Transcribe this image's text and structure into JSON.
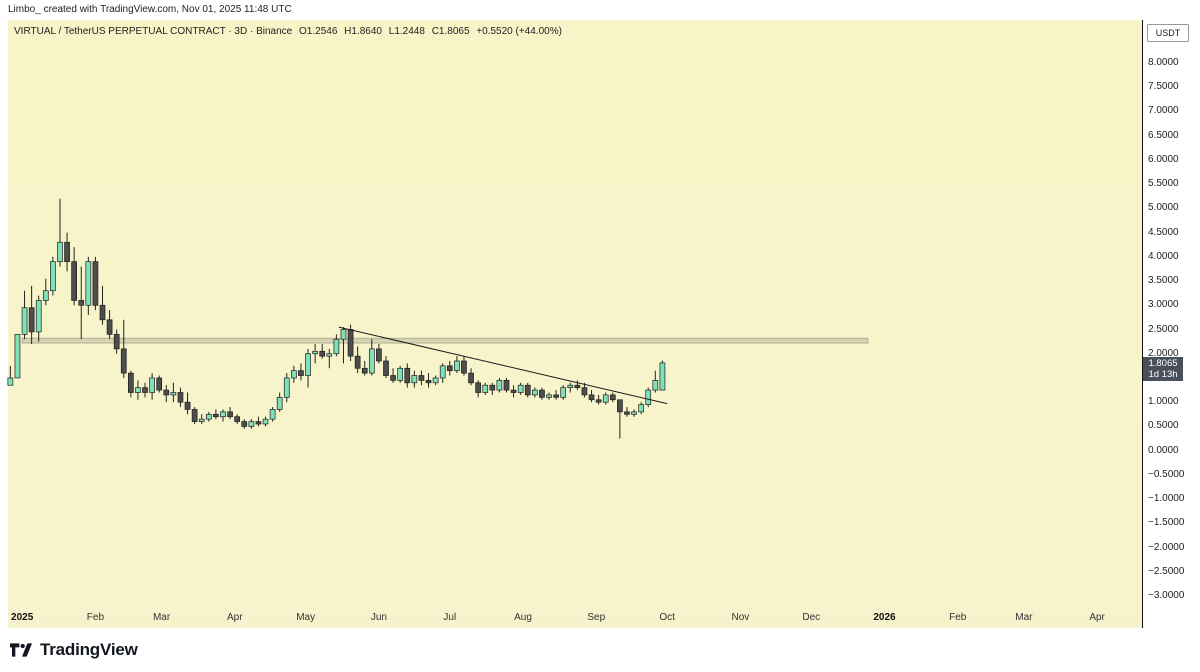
{
  "header": {
    "credit": "Limbo_ created with TradingView.com, Nov 01, 2025 11:48 UTC"
  },
  "legend": {
    "symbol": "VIRTUAL / TetherUS PERPETUAL CONTRACT · 3D · Binance",
    "open": "O1.2546",
    "high": "H1.8640",
    "low": "L1.2448",
    "close": "C1.8065",
    "change": "+0.5520 (+44.00%)"
  },
  "price_axis": {
    "currency": "USDT",
    "ticks": [
      "8.0000",
      "7.5000",
      "7.0000",
      "6.5000",
      "6.0000",
      "5.5000",
      "5.0000",
      "4.5000",
      "4.0000",
      "3.5000",
      "3.0000",
      "2.5000",
      "2.0000",
      "1.5000",
      "1.0000",
      "0.5000",
      "0.0000",
      "−0.5000",
      "−1.0000",
      "−1.5000",
      "−2.0000",
      "−2.5000",
      "−3.0000"
    ],
    "last_price": "1.8065",
    "countdown": "1d 13h"
  },
  "time_axis": {
    "labels": [
      {
        "text": "2025",
        "bold": true
      },
      {
        "text": "Feb"
      },
      {
        "text": "Mar"
      },
      {
        "text": "Apr"
      },
      {
        "text": "May"
      },
      {
        "text": "Jun"
      },
      {
        "text": "Jul"
      },
      {
        "text": "Aug"
      },
      {
        "text": "Sep"
      },
      {
        "text": "Oct"
      },
      {
        "text": "Nov"
      },
      {
        "text": "Dec"
      },
      {
        "text": "2026",
        "bold": true
      },
      {
        "text": "Feb"
      },
      {
        "text": "Mar"
      },
      {
        "text": "Apr"
      }
    ]
  },
  "brand": {
    "name": "TradingView"
  },
  "colors": {
    "up": "#80e0b8",
    "down": "#4d4d4d",
    "wick": "#222222",
    "zone": "#d6d3b4",
    "background": "#f8f4c8"
  },
  "chart_data": {
    "type": "candlestick",
    "ylim": [
      -3.0,
      8.0
    ],
    "xlim": [
      "2024-12-26",
      "2026-04-20"
    ],
    "series": [
      {
        "date": "2024-12-27",
        "o": 1.35,
        "h": 1.75,
        "l": 1.35,
        "c": 1.5
      },
      {
        "date": "2024-12-30",
        "o": 1.5,
        "h": 2.4,
        "l": 1.5,
        "c": 2.4
      },
      {
        "date": "2025-01-02",
        "o": 2.4,
        "h": 3.3,
        "l": 2.3,
        "c": 2.95
      },
      {
        "date": "2025-01-05",
        "o": 2.95,
        "h": 3.4,
        "l": 2.2,
        "c": 2.45
      },
      {
        "date": "2025-01-08",
        "o": 2.45,
        "h": 3.2,
        "l": 2.25,
        "c": 3.1
      },
      {
        "date": "2025-01-11",
        "o": 3.1,
        "h": 3.55,
        "l": 3.0,
        "c": 3.3
      },
      {
        "date": "2025-01-14",
        "o": 3.3,
        "h": 4.0,
        "l": 3.2,
        "c": 3.9
      },
      {
        "date": "2025-01-17",
        "o": 3.9,
        "h": 5.2,
        "l": 3.8,
        "c": 4.3
      },
      {
        "date": "2025-01-20",
        "o": 4.3,
        "h": 4.5,
        "l": 3.7,
        "c": 3.9
      },
      {
        "date": "2025-01-23",
        "o": 3.9,
        "h": 4.2,
        "l": 3.0,
        "c": 3.1
      },
      {
        "date": "2025-01-26",
        "o": 3.1,
        "h": 3.8,
        "l": 2.3,
        "c": 3.0
      },
      {
        "date": "2025-01-29",
        "o": 3.0,
        "h": 4.0,
        "l": 2.8,
        "c": 3.9
      },
      {
        "date": "2025-02-01",
        "o": 3.9,
        "h": 4.0,
        "l": 2.9,
        "c": 3.0
      },
      {
        "date": "2025-02-04",
        "o": 3.0,
        "h": 3.4,
        "l": 2.6,
        "c": 2.7
      },
      {
        "date": "2025-02-07",
        "o": 2.7,
        "h": 2.9,
        "l": 2.3,
        "c": 2.4
      },
      {
        "date": "2025-02-10",
        "o": 2.4,
        "h": 2.5,
        "l": 2.0,
        "c": 2.1
      },
      {
        "date": "2025-02-13",
        "o": 2.1,
        "h": 2.7,
        "l": 1.5,
        "c": 1.6
      },
      {
        "date": "2025-02-16",
        "o": 1.6,
        "h": 1.65,
        "l": 1.1,
        "c": 1.2
      },
      {
        "date": "2025-02-19",
        "o": 1.2,
        "h": 1.45,
        "l": 1.05,
        "c": 1.3
      },
      {
        "date": "2025-02-22",
        "o": 1.3,
        "h": 1.4,
        "l": 1.1,
        "c": 1.2
      },
      {
        "date": "2025-02-25",
        "o": 1.2,
        "h": 1.6,
        "l": 1.05,
        "c": 1.5
      },
      {
        "date": "2025-02-28",
        "o": 1.5,
        "h": 1.55,
        "l": 1.2,
        "c": 1.25
      },
      {
        "date": "2025-03-03",
        "o": 1.25,
        "h": 1.35,
        "l": 1.0,
        "c": 1.15
      },
      {
        "date": "2025-03-06",
        "o": 1.15,
        "h": 1.4,
        "l": 1.0,
        "c": 1.2
      },
      {
        "date": "2025-03-09",
        "o": 1.2,
        "h": 1.3,
        "l": 0.9,
        "c": 1.0
      },
      {
        "date": "2025-03-12",
        "o": 1.0,
        "h": 1.2,
        "l": 0.75,
        "c": 0.85
      },
      {
        "date": "2025-03-15",
        "o": 0.85,
        "h": 0.9,
        "l": 0.55,
        "c": 0.6
      },
      {
        "date": "2025-03-18",
        "o": 0.6,
        "h": 0.75,
        "l": 0.55,
        "c": 0.65
      },
      {
        "date": "2025-03-21",
        "o": 0.65,
        "h": 0.8,
        "l": 0.6,
        "c": 0.75
      },
      {
        "date": "2025-03-24",
        "o": 0.75,
        "h": 0.85,
        "l": 0.65,
        "c": 0.7
      },
      {
        "date": "2025-03-27",
        "o": 0.7,
        "h": 0.85,
        "l": 0.6,
        "c": 0.8
      },
      {
        "date": "2025-03-30",
        "o": 0.8,
        "h": 0.9,
        "l": 0.65,
        "c": 0.7
      },
      {
        "date": "2025-04-02",
        "o": 0.7,
        "h": 0.75,
        "l": 0.55,
        "c": 0.6
      },
      {
        "date": "2025-04-05",
        "o": 0.6,
        "h": 0.65,
        "l": 0.45,
        "c": 0.5
      },
      {
        "date": "2025-04-08",
        "o": 0.5,
        "h": 0.65,
        "l": 0.45,
        "c": 0.6
      },
      {
        "date": "2025-04-11",
        "o": 0.6,
        "h": 0.7,
        "l": 0.5,
        "c": 0.55
      },
      {
        "date": "2025-04-14",
        "o": 0.55,
        "h": 0.7,
        "l": 0.5,
        "c": 0.65
      },
      {
        "date": "2025-04-17",
        "o": 0.65,
        "h": 0.9,
        "l": 0.6,
        "c": 0.85
      },
      {
        "date": "2025-04-20",
        "o": 0.85,
        "h": 1.2,
        "l": 0.8,
        "c": 1.1
      },
      {
        "date": "2025-04-23",
        "o": 1.1,
        "h": 1.6,
        "l": 1.0,
        "c": 1.5
      },
      {
        "date": "2025-04-26",
        "o": 1.5,
        "h": 1.75,
        "l": 1.4,
        "c": 1.65
      },
      {
        "date": "2025-04-29",
        "o": 1.65,
        "h": 1.8,
        "l": 1.45,
        "c": 1.55
      },
      {
        "date": "2025-05-02",
        "o": 1.55,
        "h": 2.1,
        "l": 1.3,
        "c": 2.0
      },
      {
        "date": "2025-05-05",
        "o": 2.0,
        "h": 2.2,
        "l": 1.8,
        "c": 2.05
      },
      {
        "date": "2025-05-08",
        "o": 2.05,
        "h": 2.2,
        "l": 1.9,
        "c": 1.95
      },
      {
        "date": "2025-05-11",
        "o": 1.95,
        "h": 2.1,
        "l": 1.7,
        "c": 2.0
      },
      {
        "date": "2025-05-14",
        "o": 2.0,
        "h": 2.4,
        "l": 1.95,
        "c": 2.3
      },
      {
        "date": "2025-05-17",
        "o": 2.3,
        "h": 2.55,
        "l": 1.8,
        "c": 2.5
      },
      {
        "date": "2025-05-20",
        "o": 2.5,
        "h": 2.6,
        "l": 1.85,
        "c": 1.95
      },
      {
        "date": "2025-05-23",
        "o": 1.95,
        "h": 2.15,
        "l": 1.6,
        "c": 1.7
      },
      {
        "date": "2025-05-26",
        "o": 1.7,
        "h": 1.85,
        "l": 1.55,
        "c": 1.6
      },
      {
        "date": "2025-05-29",
        "o": 1.6,
        "h": 2.3,
        "l": 1.55,
        "c": 2.1
      },
      {
        "date": "2025-06-01",
        "o": 2.1,
        "h": 2.2,
        "l": 1.8,
        "c": 1.85
      },
      {
        "date": "2025-06-04",
        "o": 1.85,
        "h": 1.95,
        "l": 1.5,
        "c": 1.55
      },
      {
        "date": "2025-06-07",
        "o": 1.55,
        "h": 1.7,
        "l": 1.4,
        "c": 1.45
      },
      {
        "date": "2025-06-10",
        "o": 1.45,
        "h": 1.75,
        "l": 1.4,
        "c": 1.7
      },
      {
        "date": "2025-06-13",
        "o": 1.7,
        "h": 1.8,
        "l": 1.3,
        "c": 1.4
      },
      {
        "date": "2025-06-16",
        "o": 1.4,
        "h": 1.65,
        "l": 1.3,
        "c": 1.55
      },
      {
        "date": "2025-06-19",
        "o": 1.55,
        "h": 1.65,
        "l": 1.35,
        "c": 1.45
      },
      {
        "date": "2025-06-22",
        "o": 1.45,
        "h": 1.6,
        "l": 1.3,
        "c": 1.4
      },
      {
        "date": "2025-06-25",
        "o": 1.4,
        "h": 1.55,
        "l": 1.35,
        "c": 1.5
      },
      {
        "date": "2025-06-28",
        "o": 1.5,
        "h": 1.8,
        "l": 1.4,
        "c": 1.75
      },
      {
        "date": "2025-07-01",
        "o": 1.75,
        "h": 1.85,
        "l": 1.55,
        "c": 1.65
      },
      {
        "date": "2025-07-04",
        "o": 1.65,
        "h": 1.95,
        "l": 1.6,
        "c": 1.85
      },
      {
        "date": "2025-07-07",
        "o": 1.85,
        "h": 1.95,
        "l": 1.55,
        "c": 1.6
      },
      {
        "date": "2025-07-10",
        "o": 1.6,
        "h": 1.7,
        "l": 1.35,
        "c": 1.4
      },
      {
        "date": "2025-07-13",
        "o": 1.4,
        "h": 1.45,
        "l": 1.1,
        "c": 1.2
      },
      {
        "date": "2025-07-16",
        "o": 1.2,
        "h": 1.4,
        "l": 1.15,
        "c": 1.35
      },
      {
        "date": "2025-07-19",
        "o": 1.35,
        "h": 1.4,
        "l": 1.15,
        "c": 1.25
      },
      {
        "date": "2025-07-22",
        "o": 1.25,
        "h": 1.5,
        "l": 1.2,
        "c": 1.45
      },
      {
        "date": "2025-07-25",
        "o": 1.45,
        "h": 1.5,
        "l": 1.2,
        "c": 1.25
      },
      {
        "date": "2025-07-28",
        "o": 1.25,
        "h": 1.35,
        "l": 1.1,
        "c": 1.2
      },
      {
        "date": "2025-07-31",
        "o": 1.2,
        "h": 1.4,
        "l": 1.15,
        "c": 1.35
      },
      {
        "date": "2025-08-03",
        "o": 1.35,
        "h": 1.4,
        "l": 1.1,
        "c": 1.15
      },
      {
        "date": "2025-08-06",
        "o": 1.15,
        "h": 1.3,
        "l": 1.1,
        "c": 1.25
      },
      {
        "date": "2025-08-09",
        "o": 1.25,
        "h": 1.3,
        "l": 1.05,
        "c": 1.1
      },
      {
        "date": "2025-08-12",
        "o": 1.1,
        "h": 1.2,
        "l": 1.05,
        "c": 1.15
      },
      {
        "date": "2025-08-15",
        "o": 1.15,
        "h": 1.25,
        "l": 1.05,
        "c": 1.1
      },
      {
        "date": "2025-08-18",
        "o": 1.1,
        "h": 1.35,
        "l": 1.05,
        "c": 1.3
      },
      {
        "date": "2025-08-21",
        "o": 1.3,
        "h": 1.4,
        "l": 1.2,
        "c": 1.35
      },
      {
        "date": "2025-08-24",
        "o": 1.35,
        "h": 1.45,
        "l": 1.25,
        "c": 1.3
      },
      {
        "date": "2025-08-27",
        "o": 1.3,
        "h": 1.4,
        "l": 1.1,
        "c": 1.15
      },
      {
        "date": "2025-08-30",
        "o": 1.15,
        "h": 1.25,
        "l": 1.0,
        "c": 1.05
      },
      {
        "date": "2025-09-02",
        "o": 1.05,
        "h": 1.15,
        "l": 0.95,
        "c": 1.0
      },
      {
        "date": "2025-09-05",
        "o": 1.0,
        "h": 1.2,
        "l": 0.95,
        "c": 1.15
      },
      {
        "date": "2025-09-08",
        "o": 1.15,
        "h": 1.2,
        "l": 1.0,
        "c": 1.05
      },
      {
        "date": "2025-09-11",
        "o": 1.05,
        "h": 1.0,
        "l": 0.25,
        "c": 0.8
      },
      {
        "date": "2025-09-14",
        "o": 0.8,
        "h": 0.9,
        "l": 0.7,
        "c": 0.75
      },
      {
        "date": "2025-09-17",
        "o": 0.75,
        "h": 0.85,
        "l": 0.7,
        "c": 0.8
      },
      {
        "date": "2025-09-20",
        "o": 0.8,
        "h": 1.0,
        "l": 0.75,
        "c": 0.95
      },
      {
        "date": "2025-09-23",
        "o": 0.95,
        "h": 1.3,
        "l": 0.9,
        "c": 1.25
      },
      {
        "date": "2025-09-26",
        "o": 1.25,
        "h": 1.65,
        "l": 1.2,
        "c": 1.45
      },
      {
        "date": "2025-09-29",
        "o": 1.25,
        "h": 1.86,
        "l": 1.24,
        "c": 1.81
      }
    ],
    "trendline": {
      "from": {
        "date": "2025-05-15",
        "price": 2.55
      },
      "to": {
        "date": "2025-10-01",
        "price": 0.97
      }
    },
    "zone": {
      "from": "2025-01-01",
      "to": "2025-12-25",
      "low": 2.22,
      "high": 2.32
    }
  }
}
